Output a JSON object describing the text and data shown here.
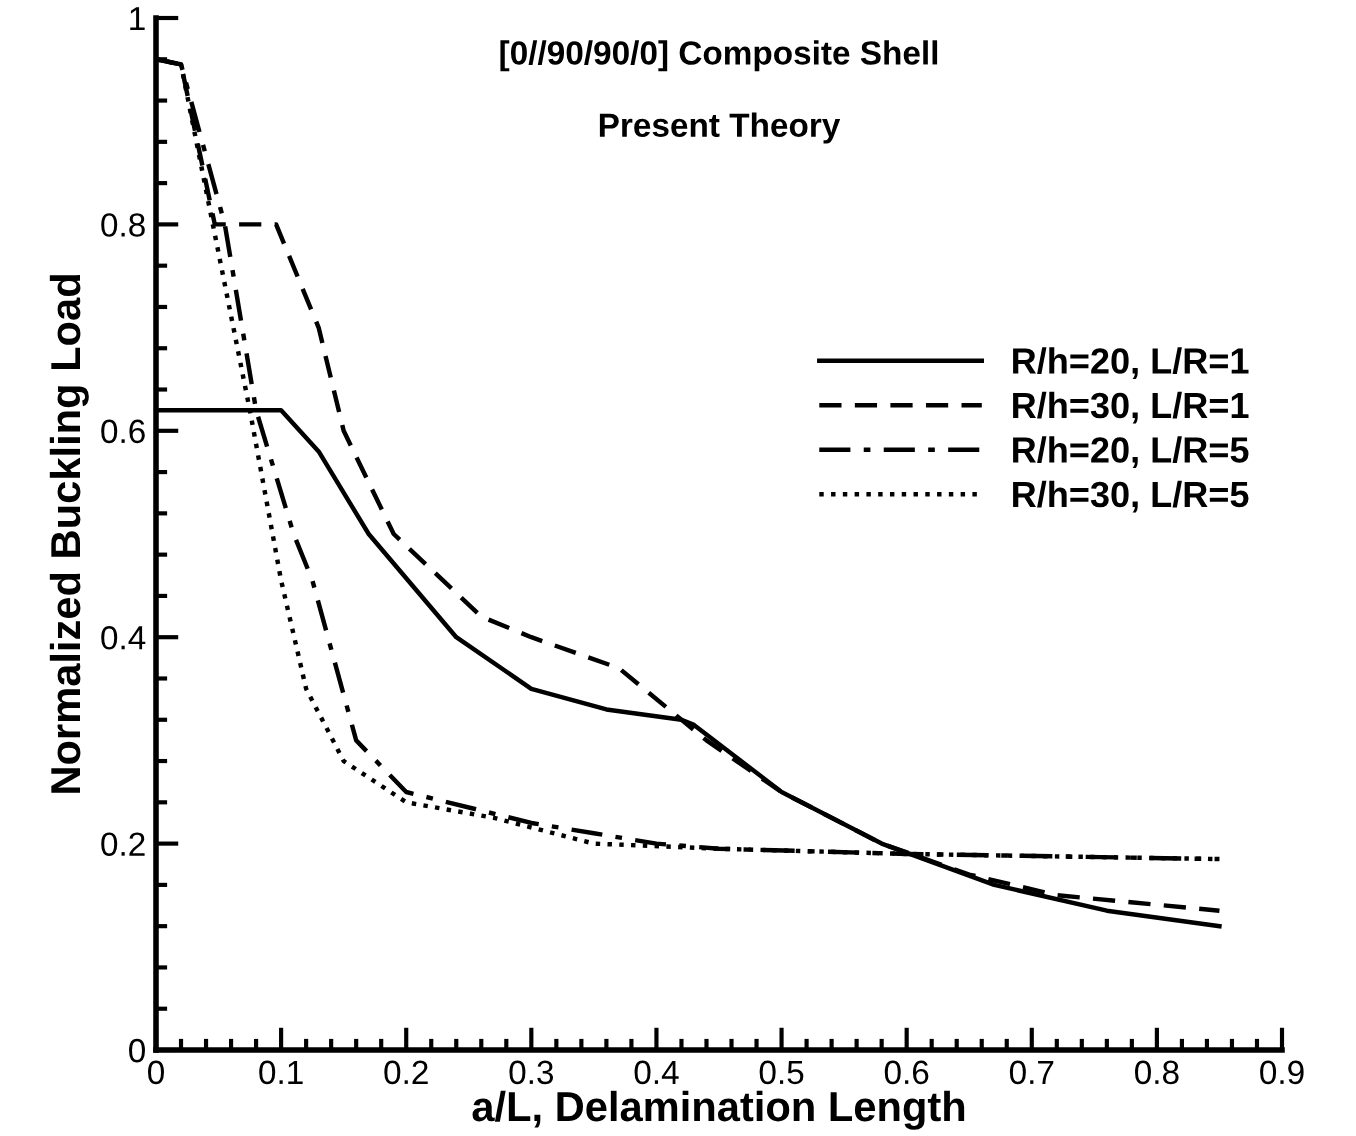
{
  "chart_data": {
    "type": "line",
    "title": "[0//90/90/0] Composite Shell",
    "subtitle": "Present Theory",
    "xlabel": "a/L, Delamination Length",
    "ylabel": "Normalized Buckling Load",
    "xlim": [
      0,
      0.9
    ],
    "ylim": [
      0,
      1
    ],
    "xticks": [
      0,
      0.1,
      0.2,
      0.3,
      0.4,
      0.5,
      0.6,
      0.7,
      0.8,
      0.9
    ],
    "yticks": [
      0,
      0.2,
      0.4,
      0.6,
      0.8,
      1
    ],
    "grid": false,
    "legend": "right",
    "marker": "none",
    "series": [
      {
        "name": "R/h=20, L/R=1",
        "color": "#000000",
        "line_style": "solid",
        "x": [
          0,
          0.1,
          0.13,
          0.17,
          0.24,
          0.3,
          0.36,
          0.42,
          0.43,
          0.5,
          0.58,
          0.67,
          0.76,
          0.85
        ],
        "values": [
          0.62,
          0.62,
          0.58,
          0.5,
          0.4,
          0.35,
          0.33,
          0.32,
          0.315,
          0.25,
          0.2,
          0.16,
          0.135,
          0.12
        ]
      },
      {
        "name": "R/h=30, L/R=1",
        "color": "#000000",
        "line_style": "dashed",
        "x": [
          0,
          0.02,
          0.047,
          0.096,
          0.13,
          0.15,
          0.19,
          0.26,
          0.3,
          0.37,
          0.39,
          0.44,
          0.5,
          0.58,
          0.65,
          0.72,
          0.85
        ],
        "values": [
          0.96,
          0.955,
          0.8,
          0.8,
          0.7,
          0.6,
          0.5,
          0.42,
          0.4,
          0.37,
          0.35,
          0.3,
          0.25,
          0.2,
          0.17,
          0.15,
          0.135
        ]
      },
      {
        "name": "R/h=20, L/R=5",
        "color": "#000000",
        "line_style": "dashdot",
        "x": [
          0,
          0.02,
          0.055,
          0.08,
          0.11,
          0.125,
          0.16,
          0.2,
          0.3,
          0.35,
          0.4,
          0.45,
          0.6,
          0.85
        ],
        "values": [
          0.96,
          0.955,
          0.8,
          0.62,
          0.5,
          0.455,
          0.3,
          0.25,
          0.22,
          0.21,
          0.2,
          0.195,
          0.19,
          0.185
        ]
      },
      {
        "name": "R/h=30, L/R=5",
        "color": "#000000",
        "line_style": "dotted",
        "x": [
          0,
          0.02,
          0.075,
          0.1,
          0.12,
          0.15,
          0.2,
          0.27,
          0.35,
          0.45,
          0.6,
          0.85
        ],
        "values": [
          0.96,
          0.955,
          0.62,
          0.455,
          0.35,
          0.28,
          0.24,
          0.225,
          0.2,
          0.195,
          0.19,
          0.185
        ]
      }
    ]
  }
}
